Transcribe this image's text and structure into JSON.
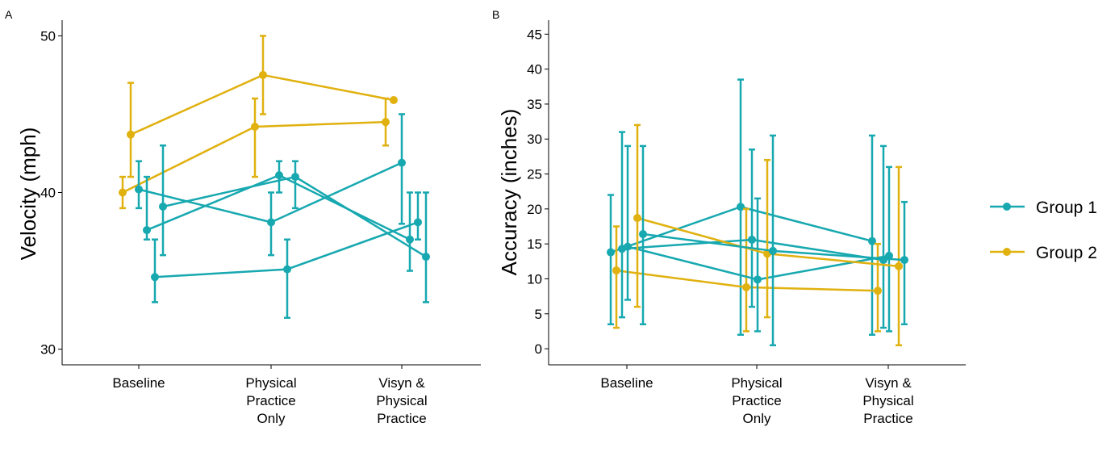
{
  "legend": [
    {
      "name": "Group 1",
      "color": "#17A8B0"
    },
    {
      "name": "Group 2",
      "color": "#E0B10F"
    }
  ],
  "chart_data": [
    {
      "panel_label": "A",
      "type": "line",
      "ylabel": "Velocity (mph)",
      "xlabel": "",
      "categories": [
        [
          "Baseline"
        ],
        [
          "Physical",
          "Practice",
          "Only"
        ],
        [
          "Visyn &",
          "Physical",
          "Practice"
        ]
      ],
      "ylim": [
        29,
        51
      ],
      "yticks": [
        30,
        40,
        50
      ],
      "grid": false,
      "legend_position": "right",
      "series": [
        {
          "group": "Group 2",
          "values": [
            40.0,
            44.2,
            44.5
          ],
          "err_low": [
            39.0,
            41.0,
            43.0
          ],
          "err_high": [
            41.0,
            46.0,
            46.0
          ]
        },
        {
          "group": "Group 2",
          "values": [
            43.7,
            47.5,
            45.9
          ],
          "err_low": [
            41.0,
            45.0,
            45.9
          ],
          "err_high": [
            47.0,
            50.0,
            45.9
          ]
        },
        {
          "group": "Group 1",
          "values": [
            40.2,
            38.1,
            41.9
          ],
          "err_low": [
            39.0,
            36.0,
            38.0
          ],
          "err_high": [
            42.0,
            40.0,
            45.0
          ]
        },
        {
          "group": "Group 1",
          "values": [
            37.6,
            41.1,
            37.0
          ],
          "err_low": [
            37.0,
            40.0,
            35.0
          ],
          "err_high": [
            41.0,
            42.0,
            40.0
          ]
        },
        {
          "group": "Group 1",
          "values": [
            34.6,
            35.1,
            38.1
          ],
          "err_low": [
            33.0,
            32.0,
            37.0
          ],
          "err_high": [
            37.0,
            37.0,
            40.0
          ]
        },
        {
          "group": "Group 1",
          "values": [
            39.1,
            41.0,
            35.9
          ],
          "err_low": [
            36.0,
            39.0,
            33.0
          ],
          "err_high": [
            43.0,
            42.0,
            40.0
          ]
        }
      ]
    },
    {
      "panel_label": "B",
      "type": "line",
      "ylabel": "Accuracy (inches)",
      "xlabel": "",
      "categories": [
        [
          "Baseline"
        ],
        [
          "Physical",
          "Practice",
          "Only"
        ],
        [
          "Visyn &",
          "Physical",
          "Practice"
        ]
      ],
      "ylim": [
        -2.3,
        47
      ],
      "yticks": [
        0,
        5,
        10,
        15,
        20,
        25,
        30,
        35,
        40,
        45
      ],
      "grid": false,
      "legend_position": "right",
      "series": [
        {
          "group": "Group 1",
          "values": [
            13.8,
            20.3,
            15.4
          ],
          "err_low": [
            3.5,
            2.0,
            2.0
          ],
          "err_high": [
            22.0,
            38.5,
            30.5
          ]
        },
        {
          "group": "Group 2",
          "values": [
            11.2,
            8.8,
            8.3
          ],
          "err_low": [
            3.0,
            2.5,
            2.5
          ],
          "err_high": [
            17.5,
            20.0,
            15.0
          ]
        },
        {
          "group": "Group 1",
          "values": [
            14.3,
            15.6,
            12.7
          ],
          "err_low": [
            4.5,
            6.0,
            3.0
          ],
          "err_high": [
            31.0,
            28.5,
            29.0
          ]
        },
        {
          "group": "Group 1",
          "values": [
            14.6,
            9.9,
            13.3
          ],
          "err_low": [
            7.0,
            2.5,
            2.5
          ],
          "err_high": [
            29.0,
            21.5,
            26.0
          ]
        },
        {
          "group": "Group 2",
          "values": [
            18.7,
            13.6,
            11.8
          ],
          "err_low": [
            6.0,
            4.5,
            0.5
          ],
          "err_high": [
            32.0,
            27.0,
            26.0
          ]
        },
        {
          "group": "Group 1",
          "values": [
            16.4,
            14.0,
            12.7
          ],
          "err_low": [
            3.5,
            0.5,
            3.5
          ],
          "err_high": [
            29.0,
            30.5,
            21.0
          ]
        }
      ]
    }
  ]
}
